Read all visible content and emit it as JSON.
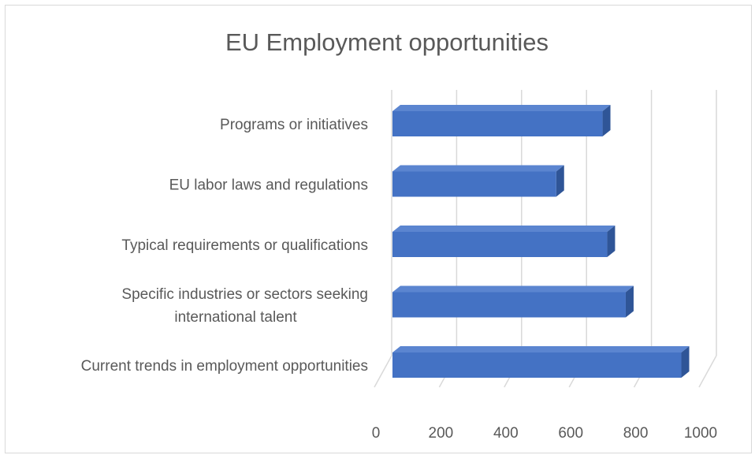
{
  "chart_data": {
    "type": "bar",
    "orientation": "horizontal",
    "title": "EU Employment opportunities",
    "xlabel": "",
    "ylabel": "",
    "categories": [
      "Current trends in employment opportunities",
      "Specific industries or sectors seeking international talent",
      "Typical requirements or qualifications",
      "EU labor laws and regulations",
      "Programs or initiatives"
    ],
    "category_lines": [
      [
        "Current trends in employment opportunities"
      ],
      [
        "Specific industries or sectors seeking",
        "international talent"
      ],
      [
        "Typical requirements or qualifications"
      ],
      [
        "EU labor laws and regulations"
      ],
      [
        "Programs or initiatives"
      ]
    ],
    "values": [
      935,
      755,
      695,
      530,
      680
    ],
    "xlim": [
      0,
      1000
    ],
    "xticks": [
      0,
      200,
      400,
      600,
      800,
      1000
    ],
    "grid": true,
    "legend": "none",
    "bar_color": "#4472c4",
    "bar_top_color": "#5b85d0",
    "bar_side_color": "#2f5597",
    "grid_color": "#d9d9d9",
    "text_color": "#595959"
  }
}
